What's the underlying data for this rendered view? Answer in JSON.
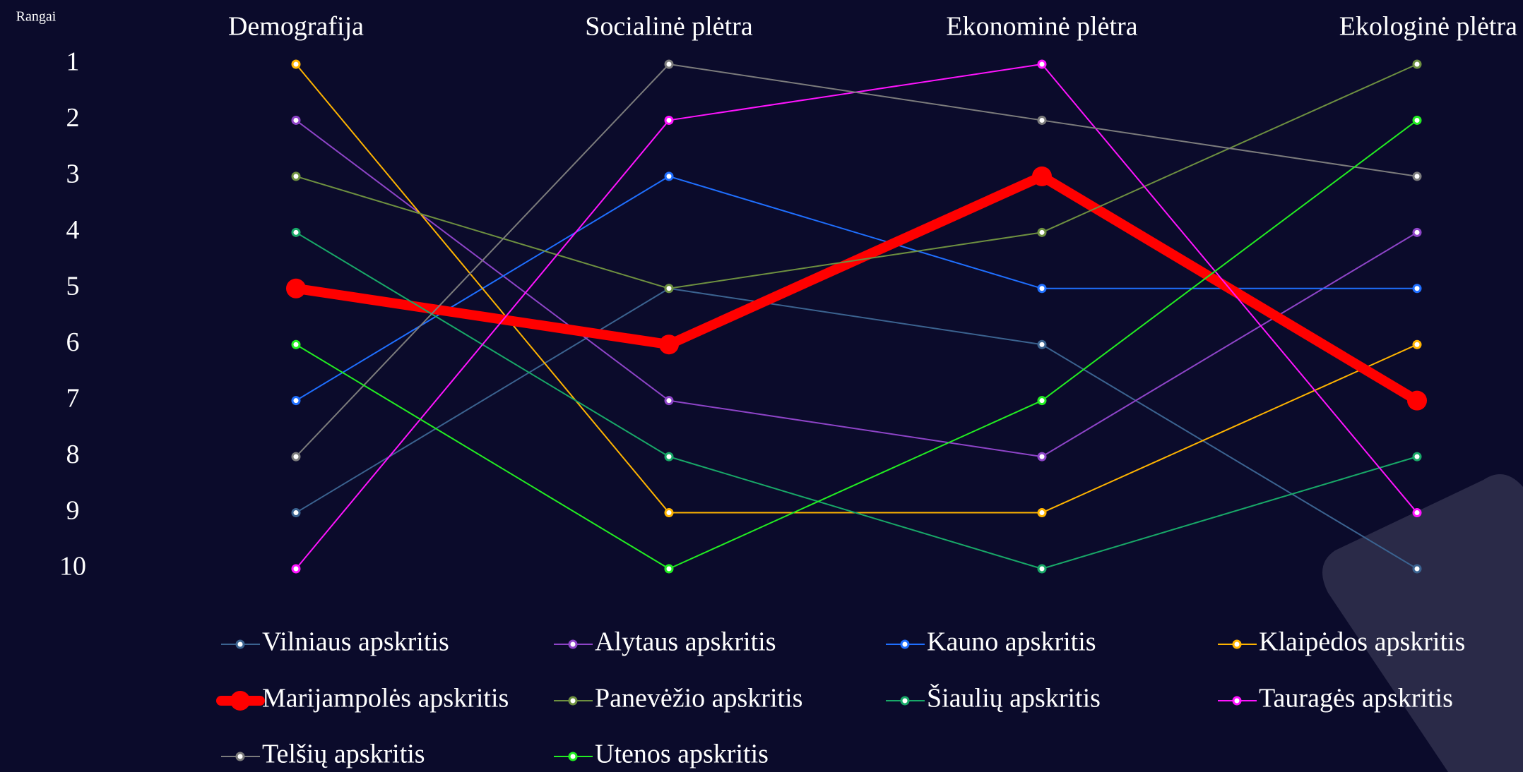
{
  "chart_data": {
    "type": "line",
    "y_axis_label": "Rangai",
    "categories": [
      "Demografija",
      "Socialinė plėtra",
      "Ekonominė plėtra",
      "Ekologinė plėtra"
    ],
    "ylim": [
      1,
      10
    ],
    "y_inverted": true,
    "yticks": [
      1,
      2,
      3,
      4,
      5,
      6,
      7,
      8,
      9,
      10
    ],
    "legend": "bottom",
    "series": [
      {
        "name": "Vilniaus apskritis",
        "color": "#3b6390",
        "line_width": 2,
        "values": [
          9,
          5,
          6,
          10
        ]
      },
      {
        "name": "Alytaus apskritis",
        "color": "#8e44c8",
        "line_width": 2,
        "values": [
          2,
          7,
          8,
          4
        ]
      },
      {
        "name": "Kauno apskritis",
        "color": "#1f6fff",
        "line_width": 2,
        "values": [
          7,
          3,
          5,
          5
        ]
      },
      {
        "name": "Klaipėdos apskritis",
        "color": "#ffb400",
        "line_width": 2,
        "values": [
          1,
          9,
          9,
          6
        ]
      },
      {
        "name": "Marijampolės apskritis",
        "color": "#ff0000",
        "line_width": 14,
        "values": [
          5,
          6,
          3,
          7
        ]
      },
      {
        "name": "Panevėžio apskritis",
        "color": "#6e9040",
        "line_width": 2,
        "values": [
          3,
          5,
          4,
          1
        ]
      },
      {
        "name": "Šiaulių apskritis",
        "color": "#18a868",
        "line_width": 2,
        "values": [
          4,
          8,
          10,
          8
        ]
      },
      {
        "name": "Tauragės apskritis",
        "color": "#ff14ff",
        "line_width": 2,
        "values": [
          10,
          2,
          1,
          9
        ]
      },
      {
        "name": "Telšių apskritis",
        "color": "#7c7c7c",
        "line_width": 2,
        "values": [
          8,
          1,
          2,
          3
        ]
      },
      {
        "name": "Utenos apskritis",
        "color": "#22ee22",
        "line_width": 2,
        "values": [
          6,
          10,
          7,
          2
        ]
      }
    ]
  }
}
